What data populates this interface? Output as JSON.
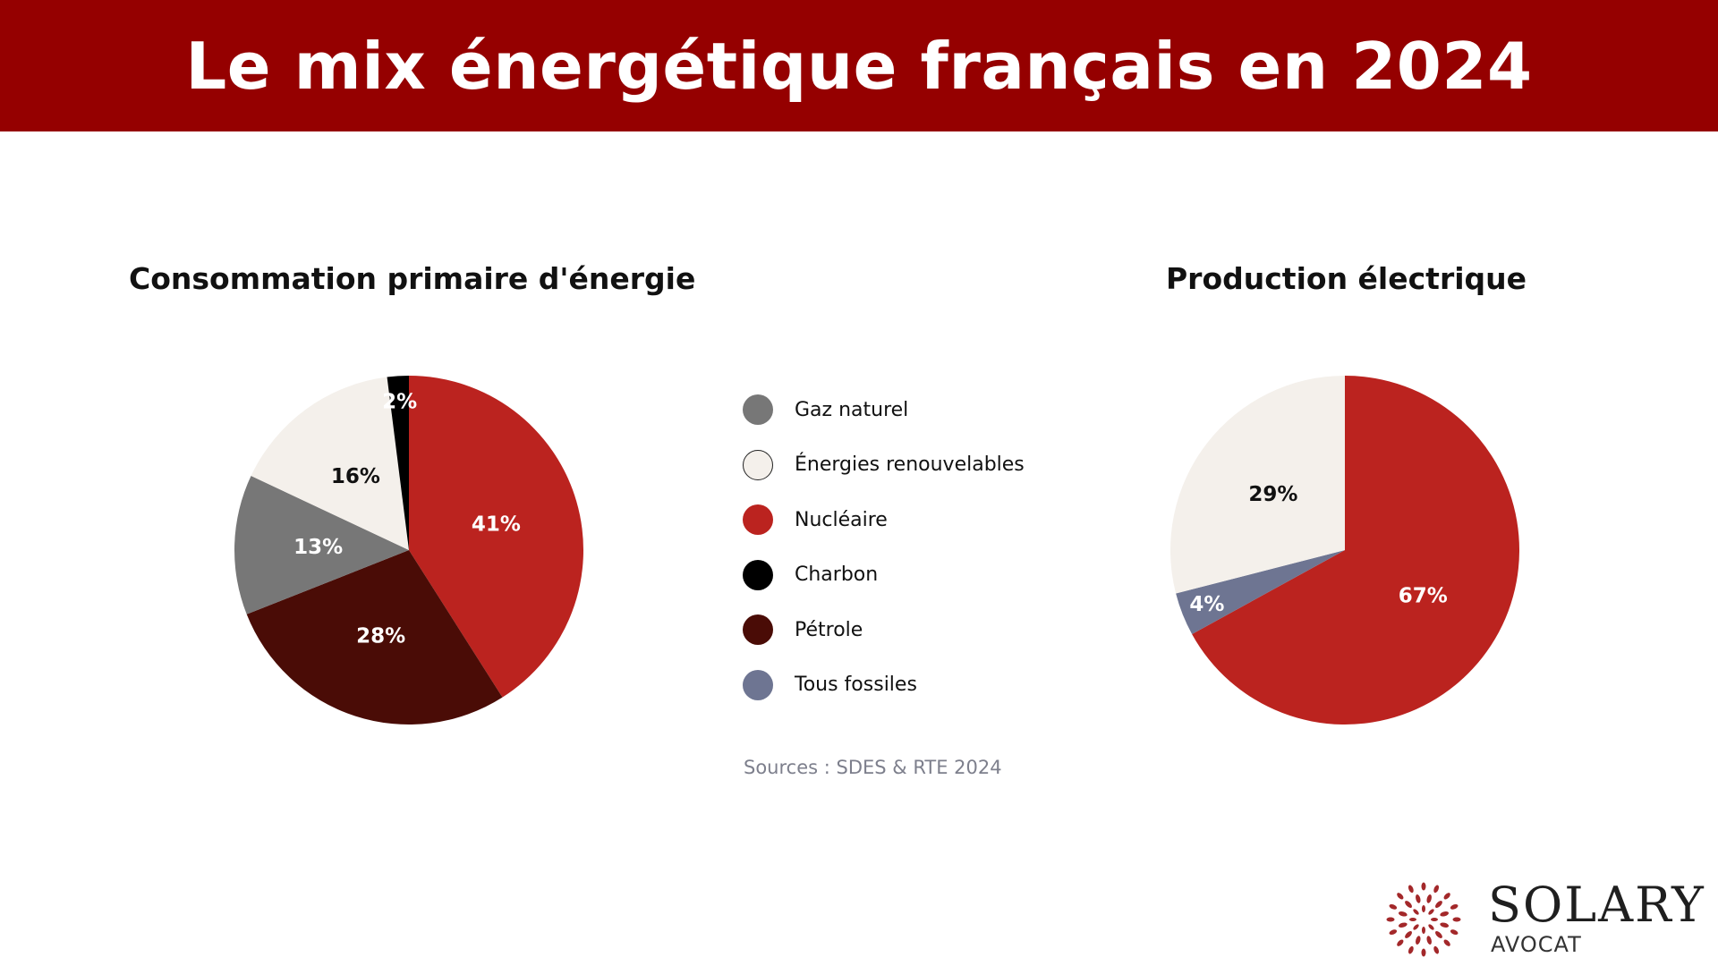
{
  "header": {
    "title": "Le mix énergétique français en 2024"
  },
  "colors": {
    "header_bg": "#950000",
    "gaz_naturel": "#777777",
    "renouvelables": "#f4f0eb",
    "nucleaire": "#bb231f",
    "charbon": "#000000",
    "petrole": "#4a0c06",
    "tous_fossiles": "#6e7592"
  },
  "chart_data": [
    {
      "type": "pie",
      "title": "Consommation primaire d'énergie",
      "slices": [
        {
          "name": "Nucléaire",
          "value": 41,
          "label": "41%",
          "color": "#bb231f",
          "label_color": "#ffffff"
        },
        {
          "name": "Pétrole",
          "value": 28,
          "label": "28%",
          "color": "#4a0c06",
          "label_color": "#ffffff"
        },
        {
          "name": "Gaz naturel",
          "value": 13,
          "label": "13%",
          "color": "#777777",
          "label_color": "#ffffff"
        },
        {
          "name": "Énergies renouvelables",
          "value": 16,
          "label": "16%",
          "color": "#f4f0eb",
          "label_color": "#111111"
        },
        {
          "name": "Charbon",
          "value": 2,
          "label": "2%",
          "color": "#000000",
          "label_color": "#ffffff"
        }
      ]
    },
    {
      "type": "pie",
      "title": "Production électrique",
      "slices": [
        {
          "name": "Nucléaire",
          "value": 67,
          "label": "67%",
          "color": "#bb231f",
          "label_color": "#ffffff"
        },
        {
          "name": "Tous fossiles",
          "value": 4,
          "label": "4%",
          "color": "#6e7592",
          "label_color": "#ffffff"
        },
        {
          "name": "Énergies renouvelables",
          "value": 29,
          "label": "29%",
          "color": "#f4f0eb",
          "label_color": "#111111"
        }
      ]
    }
  ],
  "legend": [
    {
      "label": "Gaz naturel",
      "color": "#777777",
      "icon": "circle-swatch"
    },
    {
      "label": "Énergies renouvelables",
      "color": "#f4f0eb",
      "icon": "circle-swatch"
    },
    {
      "label": "Nucléaire",
      "color": "#bb231f",
      "icon": "circle-swatch"
    },
    {
      "label": "Charbon",
      "color": "#000000",
      "icon": "circle-swatch"
    },
    {
      "label": "Pétrole",
      "color": "#4a0c06",
      "icon": "circle-swatch"
    },
    {
      "label": "Tous fossiles",
      "color": "#6e7592",
      "icon": "circle-swatch"
    }
  ],
  "source": "Sources : SDES & RTE 2024",
  "logo": {
    "name": "SOLARY",
    "subtitle": "AVOCAT",
    "icon": "sunburst-logo-icon",
    "color": "#a3282a"
  }
}
